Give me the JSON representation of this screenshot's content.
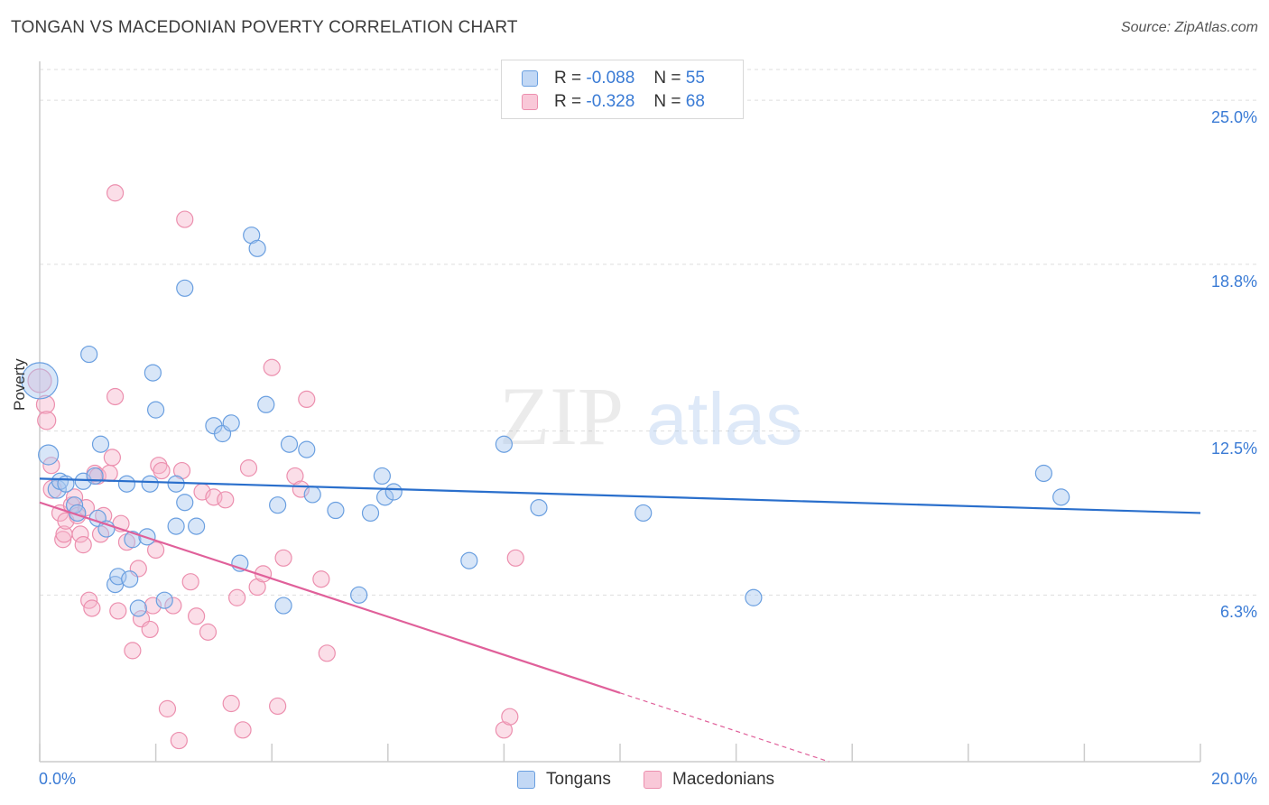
{
  "title": "TONGAN VS MACEDONIAN POVERTY CORRELATION CHART",
  "source": "Source: ZipAtlas.com",
  "watermark": {
    "zip": "ZIP",
    "atlas": "atlas"
  },
  "legend_top": {
    "rows": [
      {
        "r_label": "R =",
        "r_value": "-0.088",
        "n_label": "N =",
        "n_value": "55"
      },
      {
        "r_label": "R =",
        "r_value": "-0.328",
        "n_label": "N =",
        "n_value": "68"
      }
    ]
  },
  "legend_bottom": {
    "items": [
      "Tongans",
      "Macedonians"
    ]
  },
  "colors": {
    "tongan_fill": "#a8c8f0",
    "tongan_stroke": "#6a9fe0",
    "tongan_line": "#2a6fcc",
    "macedonian_fill": "#f6b6cb",
    "macedonian_stroke": "#ec8fae",
    "macedonian_line": "#e0609a",
    "tick_text": "#3a7bd5",
    "grid": "#dddddd"
  },
  "chart_data": {
    "type": "scatter",
    "title": "TONGAN VS MACEDONIAN POVERTY CORRELATION CHART",
    "xlabel": "",
    "ylabel": "Poverty",
    "x_ticks": [
      "0.0%",
      "20.0%"
    ],
    "y_ticks": [
      "6.3%",
      "12.5%",
      "18.8%",
      "25.0%"
    ],
    "x_tick_values": [
      0,
      20
    ],
    "y_tick_values": [
      6.3,
      12.5,
      18.8,
      25.0
    ],
    "xlim": [
      0,
      20
    ],
    "ylim": [
      0,
      26.2
    ],
    "grid": true,
    "legend": "top-center",
    "series": [
      {
        "name": "Tongans",
        "r": -0.088,
        "n": 55,
        "trend": {
          "x": [
            0,
            20
          ],
          "y": [
            10.7,
            9.4
          ]
        },
        "points": [
          [
            0.0,
            14.4,
            34
          ],
          [
            0.15,
            11.6,
            16
          ],
          [
            0.3,
            10.3,
            14
          ],
          [
            0.35,
            10.6,
            12
          ],
          [
            0.45,
            10.5,
            12
          ],
          [
            0.6,
            9.7,
            12
          ],
          [
            0.65,
            9.4,
            12
          ],
          [
            0.75,
            10.6,
            12
          ],
          [
            0.85,
            15.4,
            12
          ],
          [
            0.95,
            10.8,
            12
          ],
          [
            1.0,
            9.2,
            12
          ],
          [
            1.05,
            12.0,
            12
          ],
          [
            1.15,
            8.8,
            12
          ],
          [
            1.3,
            6.7,
            12
          ],
          [
            1.35,
            7.0,
            12
          ],
          [
            1.5,
            10.5,
            12
          ],
          [
            1.55,
            6.9,
            12
          ],
          [
            1.6,
            8.4,
            12
          ],
          [
            1.7,
            5.8,
            12
          ],
          [
            1.85,
            8.5,
            12
          ],
          [
            1.9,
            10.5,
            12
          ],
          [
            1.95,
            14.7,
            12
          ],
          [
            2.0,
            13.3,
            12
          ],
          [
            2.15,
            6.1,
            12
          ],
          [
            2.35,
            8.9,
            12
          ],
          [
            2.35,
            10.5,
            12
          ],
          [
            2.5,
            17.9,
            12
          ],
          [
            2.5,
            9.8,
            12
          ],
          [
            2.7,
            8.9,
            12
          ],
          [
            3.0,
            12.7,
            12
          ],
          [
            3.15,
            12.4,
            12
          ],
          [
            3.3,
            12.8,
            12
          ],
          [
            3.45,
            7.5,
            12
          ],
          [
            3.65,
            19.9,
            12
          ],
          [
            3.75,
            19.4,
            12
          ],
          [
            3.9,
            13.5,
            12
          ],
          [
            4.1,
            9.7,
            12
          ],
          [
            4.2,
            5.9,
            12
          ],
          [
            4.3,
            12.0,
            12
          ],
          [
            4.6,
            11.8,
            12
          ],
          [
            4.7,
            10.1,
            12
          ],
          [
            5.1,
            9.5,
            12
          ],
          [
            5.5,
            6.3,
            12
          ],
          [
            5.7,
            9.4,
            12
          ],
          [
            5.9,
            10.8,
            12
          ],
          [
            5.95,
            10.0,
            12
          ],
          [
            6.1,
            10.2,
            12
          ],
          [
            7.4,
            7.6,
            12
          ],
          [
            8.0,
            12.0,
            12
          ],
          [
            8.6,
            9.6,
            12
          ],
          [
            10.4,
            9.4,
            12
          ],
          [
            12.3,
            6.2,
            12
          ],
          [
            17.3,
            10.9,
            12
          ],
          [
            17.6,
            10.0,
            12
          ]
        ]
      },
      {
        "name": "Macedonians",
        "r": -0.328,
        "n": 68,
        "trend": {
          "x": [
            0,
            10.0
          ],
          "y": [
            9.8,
            2.6
          ]
        },
        "trend_dashed": {
          "x": [
            10.0,
            13.6
          ],
          "y": [
            2.6,
            0.0
          ]
        },
        "points": [
          [
            0.0,
            14.4,
            20
          ],
          [
            0.1,
            13.5,
            14
          ],
          [
            0.12,
            12.9,
            14
          ],
          [
            0.2,
            11.2,
            12
          ],
          [
            0.22,
            10.3,
            14
          ],
          [
            0.35,
            9.4,
            12
          ],
          [
            0.4,
            8.4,
            12
          ],
          [
            0.42,
            8.6,
            12
          ],
          [
            0.45,
            9.1,
            12
          ],
          [
            0.55,
            9.7,
            12
          ],
          [
            0.6,
            10.0,
            12
          ],
          [
            0.65,
            9.3,
            12
          ],
          [
            0.7,
            8.6,
            12
          ],
          [
            0.75,
            8.2,
            12
          ],
          [
            0.8,
            9.6,
            12
          ],
          [
            0.85,
            6.1,
            12
          ],
          [
            0.9,
            5.8,
            12
          ],
          [
            0.95,
            10.9,
            12
          ],
          [
            1.0,
            10.8,
            12
          ],
          [
            1.05,
            8.6,
            12
          ],
          [
            1.1,
            9.3,
            12
          ],
          [
            1.2,
            10.9,
            12
          ],
          [
            1.25,
            11.5,
            12
          ],
          [
            1.3,
            13.8,
            12
          ],
          [
            1.35,
            5.7,
            12
          ],
          [
            1.4,
            9.0,
            12
          ],
          [
            1.5,
            8.3,
            12
          ],
          [
            1.6,
            4.2,
            12
          ],
          [
            1.7,
            7.3,
            12
          ],
          [
            1.75,
            5.4,
            12
          ],
          [
            1.9,
            5.0,
            12
          ],
          [
            1.95,
            5.9,
            12
          ],
          [
            2.0,
            8.0,
            12
          ],
          [
            2.05,
            11.2,
            12
          ],
          [
            2.1,
            11.0,
            12
          ],
          [
            2.2,
            2.0,
            12
          ],
          [
            2.3,
            5.9,
            12
          ],
          [
            2.4,
            0.8,
            12
          ],
          [
            2.45,
            11.0,
            12
          ],
          [
            2.5,
            20.5,
            12
          ],
          [
            2.6,
            6.8,
            12
          ],
          [
            2.7,
            5.5,
            12
          ],
          [
            2.8,
            10.2,
            12
          ],
          [
            2.9,
            4.9,
            12
          ],
          [
            3.0,
            10.0,
            12
          ],
          [
            3.2,
            9.9,
            12
          ],
          [
            3.3,
            2.2,
            12
          ],
          [
            3.4,
            6.2,
            12
          ],
          [
            3.5,
            1.2,
            12
          ],
          [
            3.6,
            11.1,
            12
          ],
          [
            3.75,
            6.6,
            12
          ],
          [
            3.85,
            7.1,
            12
          ],
          [
            4.0,
            14.9,
            12
          ],
          [
            4.1,
            2.1,
            12
          ],
          [
            4.2,
            7.7,
            12
          ],
          [
            4.4,
            10.8,
            12
          ],
          [
            4.5,
            10.3,
            12
          ],
          [
            4.6,
            13.7,
            12
          ],
          [
            4.85,
            6.9,
            12
          ],
          [
            4.95,
            4.1,
            12
          ],
          [
            1.3,
            21.5,
            12
          ],
          [
            8.0,
            1.2,
            12
          ],
          [
            8.1,
            1.7,
            12
          ],
          [
            8.2,
            7.7,
            12
          ]
        ]
      }
    ]
  }
}
